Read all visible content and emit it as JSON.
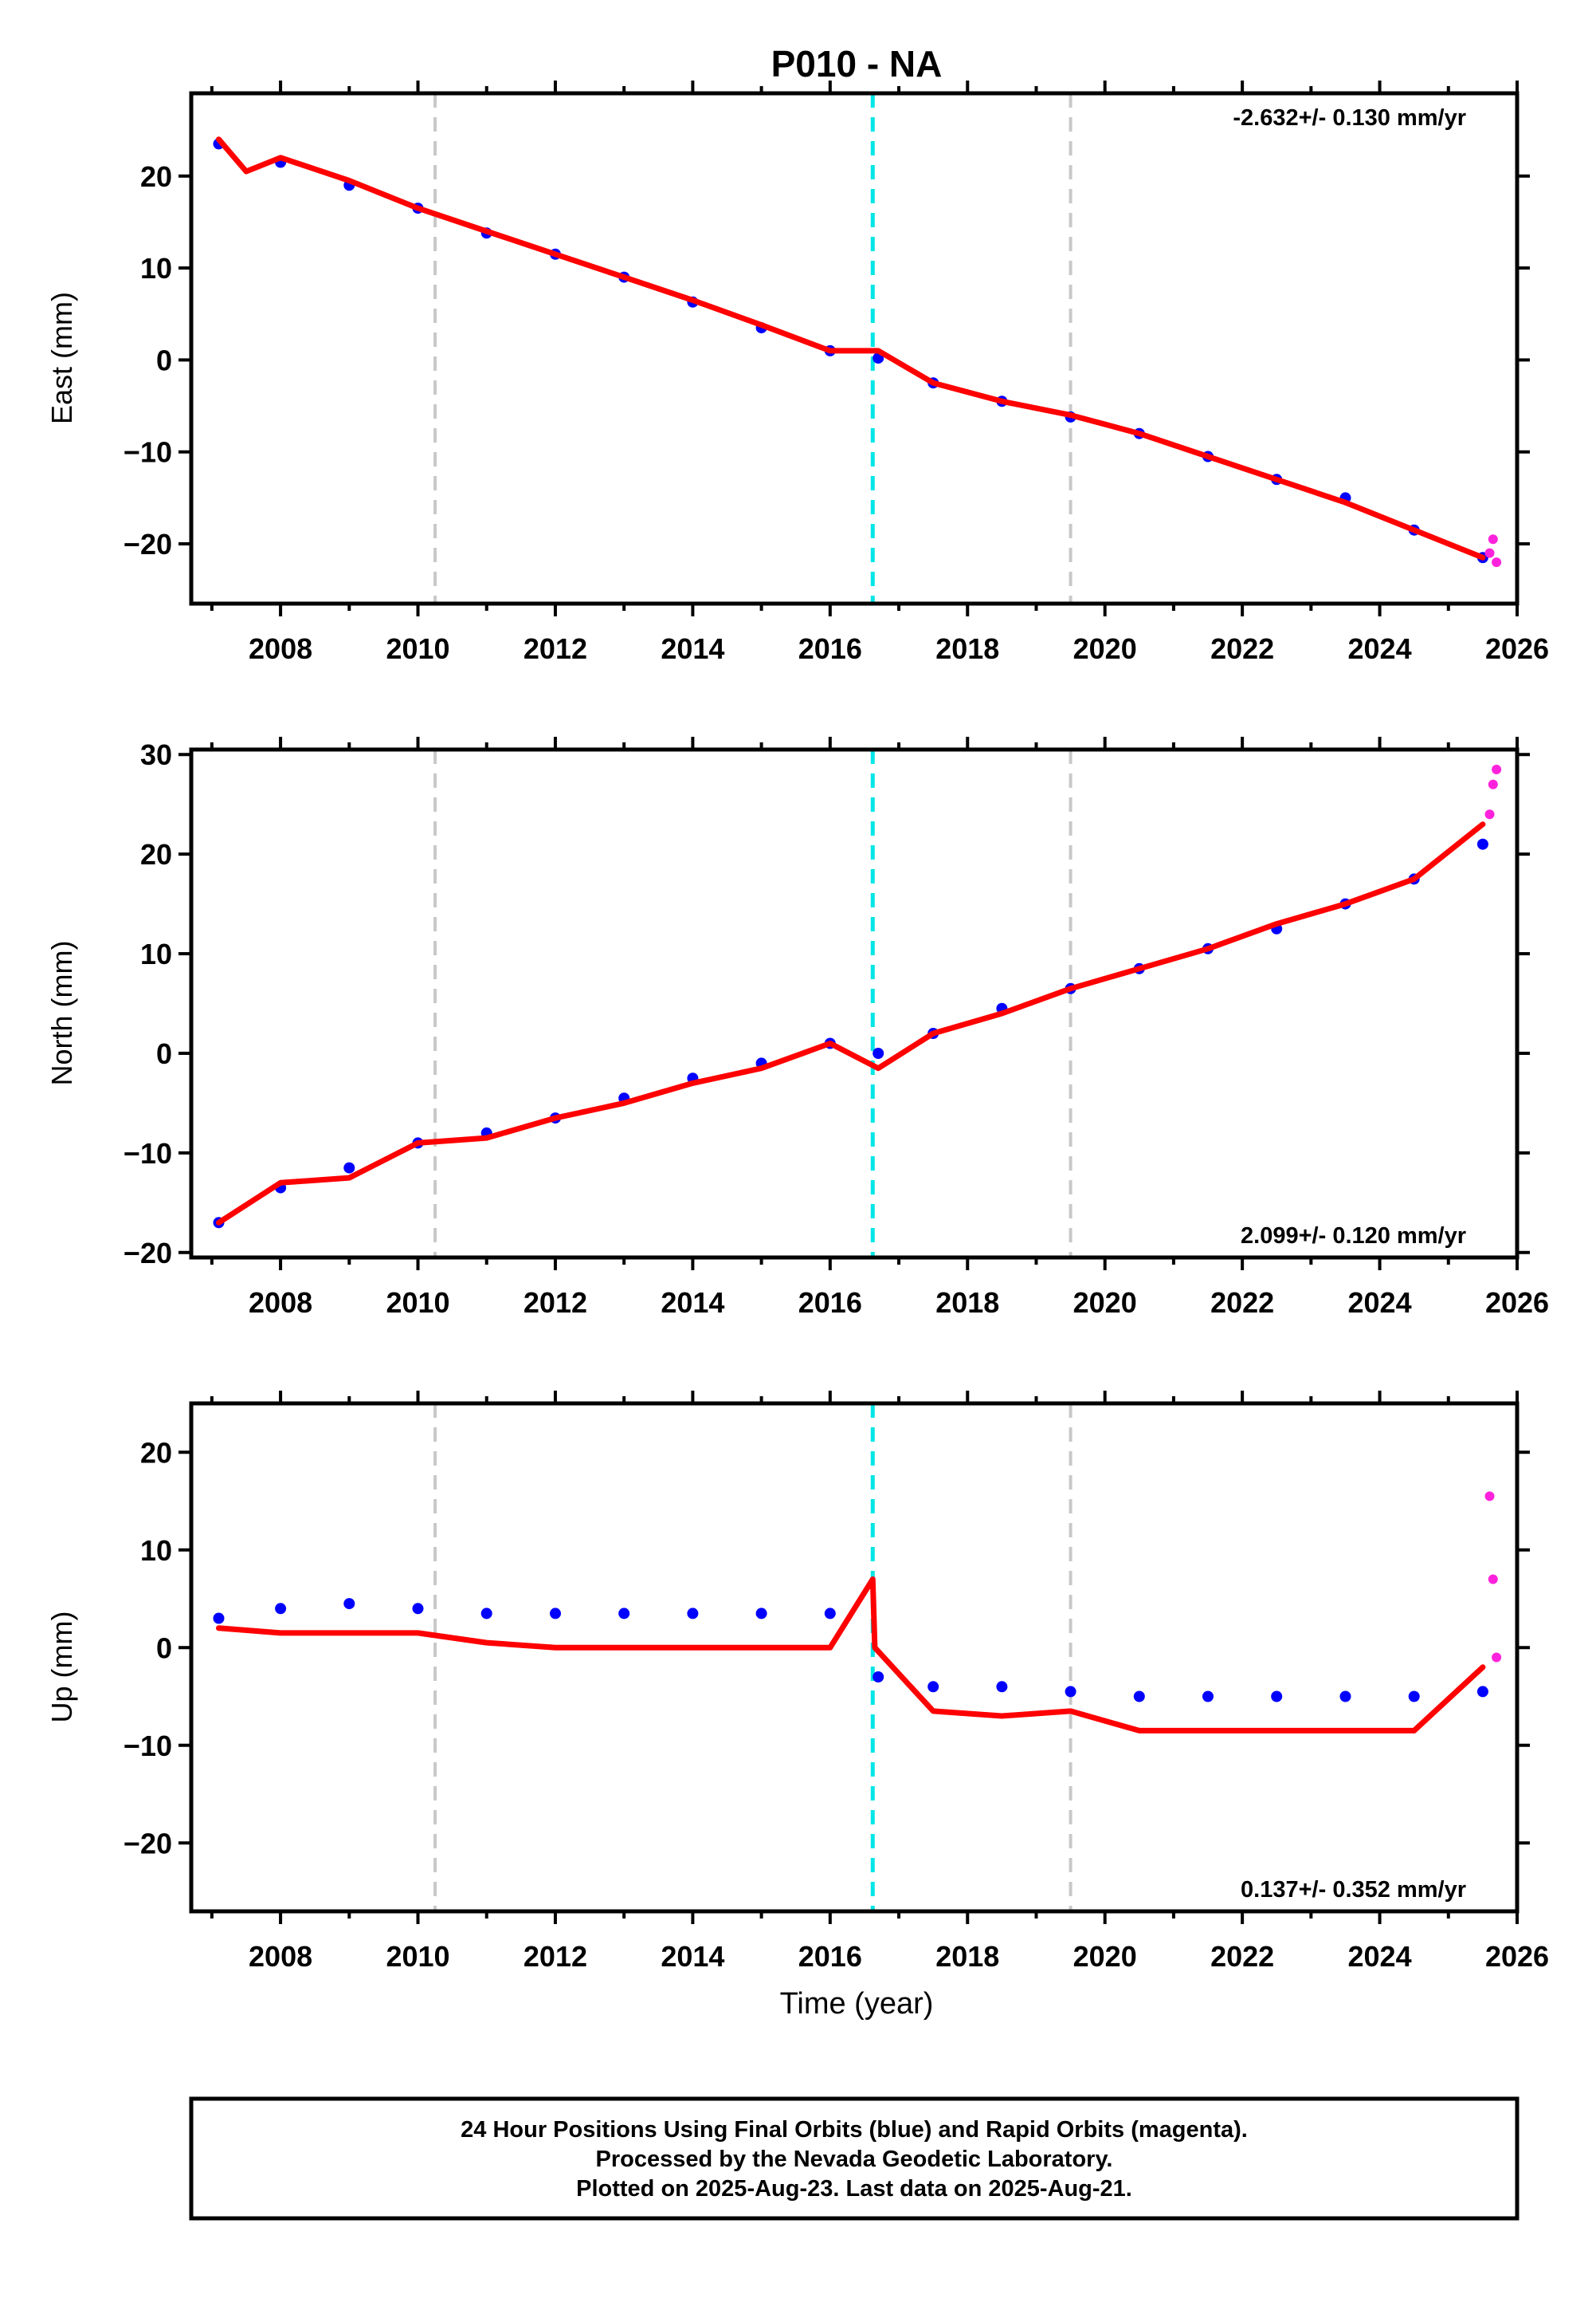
{
  "chart_data": {
    "type": "scatter",
    "title": "P010 - NA",
    "xlabel": "Time (year)",
    "xlim": [
      2006.7,
      2026.0
    ],
    "xticks": [
      2008,
      2010,
      2012,
      2014,
      2016,
      2018,
      2020,
      2022,
      2024,
      2026
    ],
    "event_lines": [
      {
        "x": 2010.25,
        "color": "#c8c8c8"
      },
      {
        "x": 2016.62,
        "color": "#00e6e6"
      },
      {
        "x": 2019.5,
        "color": "#c8c8c8"
      }
    ],
    "colors": {
      "final": "#0000ff",
      "rapid": "#ff22dd",
      "model": "#ff0000"
    },
    "panels": [
      {
        "ylabel": "East (mm)",
        "ylim": [
          -26.5,
          29
        ],
        "yticks": [
          -20,
          -10,
          0,
          10,
          20
        ],
        "rate": "-2.632+/- 0.130 mm/yr",
        "rate_pos": "top-right",
        "series": [
          {
            "name": "Final Orbits",
            "x": [
              2007.1,
              2008.0,
              2009.0,
              2010.0,
              2011.0,
              2012.0,
              2013.0,
              2014.0,
              2015.0,
              2016.0,
              2016.7,
              2017.5,
              2018.5,
              2019.5,
              2020.5,
              2021.5,
              2022.5,
              2023.5,
              2024.5,
              2025.5
            ],
            "y": [
              23.5,
              21.5,
              19.0,
              16.5,
              13.8,
              11.5,
              9.0,
              6.3,
              3.5,
              1.0,
              0.2,
              -2.5,
              -4.5,
              -6.2,
              -8.0,
              -10.5,
              -13.0,
              -15.0,
              -18.5,
              -21.5
            ]
          },
          {
            "name": "Rapid Orbits",
            "x": [
              2025.6,
              2025.65,
              2025.7
            ],
            "y": [
              -21.0,
              -19.5,
              -22.0
            ]
          },
          {
            "name": "Model",
            "x": [
              2007.1,
              2007.5,
              2008.0,
              2009.0,
              2010.0,
              2011.0,
              2012.0,
              2013.0,
              2014.0,
              2015.0,
              2016.0,
              2016.7,
              2017.5,
              2018.5,
              2019.5,
              2020.5,
              2021.5,
              2022.5,
              2023.5,
              2024.5,
              2025.5
            ],
            "y": [
              24.0,
              20.5,
              22.0,
              19.5,
              16.5,
              14.0,
              11.5,
              9.0,
              6.5,
              3.8,
              1.0,
              1.0,
              -2.5,
              -4.5,
              -6.0,
              -8.0,
              -10.5,
              -13.0,
              -15.5,
              -18.5,
              -21.5
            ]
          }
        ]
      },
      {
        "ylabel": "North (mm)",
        "ylim": [
          -20.5,
          30.5
        ],
        "yticks": [
          -20,
          -10,
          0,
          10,
          20,
          30
        ],
        "rate": "2.099+/- 0.120 mm/yr",
        "rate_pos": "bottom-right",
        "series": [
          {
            "name": "Final Orbits",
            "x": [
              2007.1,
              2008.0,
              2009.0,
              2010.0,
              2011.0,
              2012.0,
              2013.0,
              2014.0,
              2015.0,
              2016.0,
              2016.7,
              2017.5,
              2018.5,
              2019.5,
              2020.5,
              2021.5,
              2022.5,
              2023.5,
              2024.5,
              2025.5
            ],
            "y": [
              -17.0,
              -13.5,
              -11.5,
              -9.0,
              -8.0,
              -6.5,
              -4.5,
              -2.5,
              -1.0,
              1.0,
              0.0,
              2.0,
              4.5,
              6.5,
              8.5,
              10.5,
              12.5,
              15.0,
              17.5,
              21.0
            ]
          },
          {
            "name": "Rapid Orbits",
            "x": [
              2025.6,
              2025.65,
              2025.7
            ],
            "y": [
              24.0,
              27.0,
              28.5
            ]
          },
          {
            "name": "Model",
            "x": [
              2007.1,
              2008.0,
              2009.0,
              2010.0,
              2011.0,
              2012.0,
              2013.0,
              2014.0,
              2015.0,
              2016.0,
              2016.7,
              2017.5,
              2018.5,
              2019.5,
              2020.5,
              2021.5,
              2022.5,
              2023.5,
              2024.5,
              2025.5
            ],
            "y": [
              -17.0,
              -13.0,
              -12.5,
              -9.0,
              -8.5,
              -6.5,
              -5.0,
              -3.0,
              -1.5,
              1.0,
              -1.5,
              2.0,
              4.0,
              6.5,
              8.5,
              10.5,
              13.0,
              15.0,
              17.5,
              23.0
            ]
          }
        ]
      },
      {
        "ylabel": "Up (mm)",
        "ylim": [
          -27,
          25
        ],
        "yticks": [
          -20,
          -10,
          0,
          10,
          20
        ],
        "rate": "0.137+/- 0.352 mm/yr",
        "rate_pos": "bottom-right",
        "series": [
          {
            "name": "Final Orbits",
            "x": [
              2007.1,
              2008.0,
              2009.0,
              2010.0,
              2011.0,
              2012.0,
              2013.0,
              2014.0,
              2015.0,
              2016.0,
              2016.7,
              2017.5,
              2018.5,
              2019.5,
              2020.5,
              2021.5,
              2022.5,
              2023.5,
              2024.5,
              2025.5
            ],
            "y": [
              3.0,
              4.0,
              4.5,
              4.0,
              3.5,
              3.5,
              3.5,
              3.5,
              3.5,
              3.5,
              -3.0,
              -4.0,
              -4.0,
              -4.5,
              -5.0,
              -5.0,
              -5.0,
              -5.0,
              -5.0,
              -4.5
            ]
          },
          {
            "name": "Rapid Orbits",
            "x": [
              2025.6,
              2025.65,
              2025.7
            ],
            "y": [
              15.5,
              7.0,
              -1.0
            ]
          },
          {
            "name": "Model",
            "x": [
              2007.1,
              2008.0,
              2009.0,
              2010.0,
              2011.0,
              2012.0,
              2013.0,
              2014.0,
              2015.0,
              2016.0,
              2016.62,
              2016.65,
              2017.5,
              2018.5,
              2019.5,
              2020.5,
              2021.5,
              2022.5,
              2023.5,
              2024.5,
              2025.5
            ],
            "y": [
              2.0,
              1.5,
              1.5,
              1.5,
              0.5,
              0.0,
              0.0,
              0.0,
              0.0,
              0.0,
              7.0,
              0.0,
              -6.5,
              -7.0,
              -6.5,
              -8.5,
              -8.5,
              -8.5,
              -8.5,
              -8.5,
              -2.0
            ]
          }
        ]
      }
    ]
  },
  "footer": {
    "line1": "24 Hour Positions Using Final Orbits (blue) and Rapid Orbits (magenta).",
    "line2": "Processed by the Nevada Geodetic Laboratory.",
    "line3": "Plotted on 2025-Aug-23. Last data on 2025-Aug-21."
  }
}
